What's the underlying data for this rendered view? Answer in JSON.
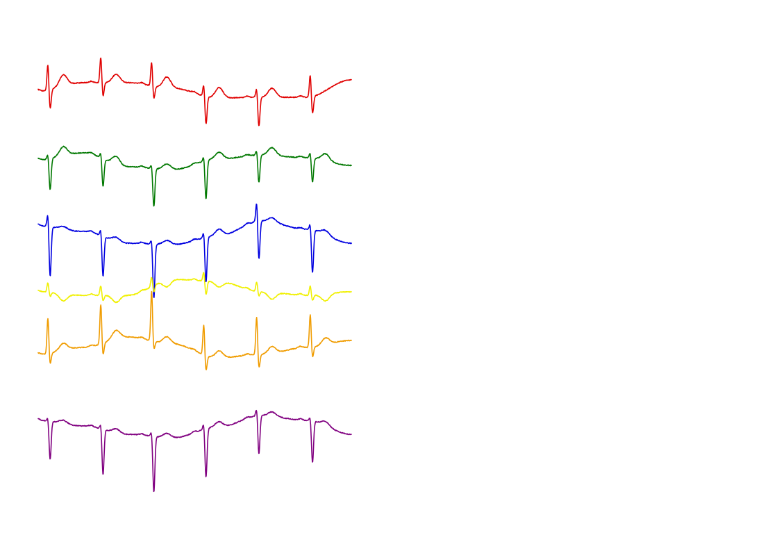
{
  "chart_data": {
    "type": "line",
    "title": "",
    "xlabel": "",
    "ylabel": "",
    "grid": false,
    "legend": "none",
    "x_range": [
      0,
      450
    ],
    "series": [
      {
        "color": "#e00000",
        "baseline": 115,
        "beats": [
          14,
          90,
          163,
          238,
          314,
          391
        ],
        "r_amp": [
          -38,
          -38,
          -35,
          -18,
          -14,
          -33
        ],
        "s_amp": [
          28,
          20,
          18,
          40,
          42,
          25
        ],
        "t_amp": [
          -16,
          -12,
          -16,
          -15,
          -13,
          0
        ],
        "wander": [
          16,
          4,
          4,
          12,
          26,
          25,
          25,
          0
        ]
      },
      {
        "color": "#007800",
        "baseline": 225,
        "beats": [
          14,
          90,
          163,
          238,
          314,
          391
        ],
        "r_amp": [
          -8,
          -8,
          -6,
          -8,
          -8,
          -8
        ],
        "s_amp": [
          45,
          40,
          55,
          55,
          40,
          35
        ],
        "t_amp": [
          -13,
          -12,
          -8,
          -10,
          -11,
          -10
        ],
        "wander": [
          5,
          -5,
          15,
          19,
          4,
          -2,
          2,
          13
        ]
      },
      {
        "color": "#0000e0",
        "baseline": 330,
        "beats": [
          14,
          90,
          163,
          238,
          314,
          391
        ],
        "r_amp": [
          -20,
          -10,
          -8,
          -10,
          -30,
          -10
        ],
        "s_amp": [
          72,
          58,
          78,
          65,
          55,
          62
        ],
        "t_amp": [
          -4,
          -6,
          -6,
          -10,
          -6,
          -6
        ],
        "wander": [
          -5,
          3,
          20,
          22,
          10,
          -12,
          0,
          20
        ]
      },
      {
        "color": "#f0f000",
        "baseline": 420,
        "beats": [
          14,
          90,
          163,
          238,
          314,
          391
        ],
        "r_amp": [
          -14,
          -14,
          -14,
          -14,
          -14,
          -14
        ],
        "s_amp": [
          6,
          8,
          10,
          20,
          6,
          8
        ],
        "t_amp": [
          10,
          10,
          10,
          8,
          10,
          10
        ],
        "wander": [
          0,
          5,
          5,
          -18,
          -15,
          0,
          5,
          0
        ]
      },
      {
        "color": "#f09c00",
        "baseline": 500,
        "beats": [
          14,
          90,
          163,
          238,
          314,
          391
        ],
        "r_amp": [
          -52,
          -58,
          -72,
          -45,
          -55,
          -48
        ],
        "s_amp": [
          16,
          18,
          12,
          22,
          20,
          15
        ],
        "t_amp": [
          -10,
          -12,
          -10,
          -10,
          -10,
          -10
        ],
        "wander": [
          10,
          0,
          -15,
          -5,
          15,
          10,
          0,
          -10
        ]
      },
      {
        "color": "#800080",
        "baseline": 610,
        "beats": [
          14,
          90,
          163,
          238,
          314,
          391
        ],
        "r_amp": [
          -6,
          -8,
          -8,
          -10,
          -12,
          -6
        ],
        "s_amp": [
          55,
          65,
          80,
          70,
          55,
          60
        ],
        "t_amp": [
          -5,
          -6,
          -6,
          -8,
          -6,
          -6
        ],
        "wander": [
          -5,
          3,
          15,
          20,
          5,
          -12,
          -5,
          15
        ]
      }
    ]
  }
}
